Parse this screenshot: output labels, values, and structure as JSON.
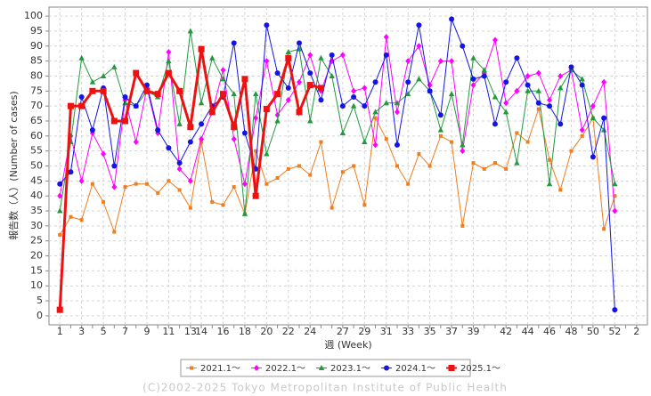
{
  "chart_data": {
    "type": "line",
    "ylabel": "報告数（人）(Number of cases)",
    "xlabel": "週 (Week)",
    "footer": "(C)2002-2025 Tokyo Metropolitan Institute of Public Health",
    "categories": [
      1,
      null,
      3,
      null,
      5,
      null,
      7,
      null,
      9,
      null,
      11,
      null,
      13,
      14,
      null,
      16,
      null,
      18,
      null,
      20,
      null,
      22,
      null,
      24,
      null,
      null,
      27,
      null,
      29,
      null,
      31,
      null,
      33,
      null,
      35,
      null,
      37,
      null,
      39,
      null,
      null,
      42,
      null,
      44,
      null,
      46,
      null,
      48,
      null,
      50,
      null,
      52,
      null,
      2
    ],
    "ylim": [
      -3,
      103
    ],
    "yticks": [
      0,
      5,
      10,
      15,
      20,
      25,
      30,
      35,
      40,
      45,
      50,
      55,
      60,
      65,
      70,
      75,
      80,
      85,
      90,
      95,
      100
    ],
    "grid": true,
    "legend": "bottom",
    "series": [
      {
        "name": "2021.1～",
        "color": "#f07d1e",
        "marker": "square",
        "values": [
          27,
          33,
          32,
          44,
          38,
          28,
          43,
          44,
          44,
          41,
          45,
          42,
          36,
          58,
          38,
          37,
          43,
          34,
          55,
          44,
          46,
          49,
          50,
          47,
          58,
          36,
          48,
          50,
          37,
          66,
          59,
          50,
          44,
          54,
          50,
          60,
          58,
          30,
          51,
          49,
          51,
          49,
          61,
          58,
          69,
          52,
          42,
          55,
          60,
          66,
          29,
          40,
          null,
          null
        ]
      },
      {
        "name": "2022.1～",
        "color": "#ff00ff",
        "marker": "diamond",
        "values": [
          40,
          60,
          45,
          61,
          54,
          43,
          72,
          58,
          76,
          61,
          88,
          49,
          45,
          59,
          68,
          82,
          59,
          44,
          66,
          85,
          67,
          72,
          78,
          87,
          75,
          85,
          87,
          75,
          76,
          57,
          93,
          68,
          85,
          90,
          77,
          85,
          85,
          55,
          77,
          81,
          92,
          71,
          75,
          80,
          81,
          72,
          80,
          82,
          62,
          70,
          78,
          35,
          null,
          null
        ]
      },
      {
        "name": "2023.1～",
        "color": "#22993d",
        "marker": "triangle",
        "values": [
          35,
          58,
          86,
          78,
          80,
          83,
          71,
          70,
          75,
          73,
          85,
          64,
          95,
          71,
          86,
          79,
          74,
          34,
          74,
          54,
          65,
          88,
          89,
          65,
          86,
          80,
          61,
          70,
          58,
          68,
          71,
          71,
          74,
          79,
          75,
          62,
          74,
          57,
          86,
          82,
          73,
          68,
          51,
          75,
          75,
          44,
          76,
          82,
          79,
          66,
          62,
          44,
          null,
          null
        ]
      },
      {
        "name": "2024.1～",
        "color": "#1414e6",
        "marker": "circle",
        "values": [
          44,
          48,
          73,
          62,
          76,
          50,
          73,
          70,
          77,
          62,
          56,
          51,
          58,
          64,
          70,
          73,
          91,
          61,
          49,
          97,
          81,
          76,
          91,
          81,
          72,
          87,
          70,
          73,
          70,
          78,
          87,
          57,
          78,
          97,
          75,
          67,
          99,
          90,
          79,
          80,
          64,
          78,
          86,
          77,
          71,
          70,
          64,
          83,
          77,
          53,
          66,
          2,
          null,
          null
        ]
      },
      {
        "name": "2025.1～",
        "color": "#ee1111",
        "marker": "bigsquare",
        "values": [
          2,
          70,
          70,
          75,
          75,
          65,
          65,
          81,
          75,
          74,
          81,
          75,
          63,
          89,
          68,
          74,
          63,
          79,
          40,
          69,
          74,
          86,
          68,
          77,
          76,
          null,
          null,
          null,
          null,
          null,
          null,
          null,
          null,
          null,
          null,
          null,
          null,
          null,
          null,
          null,
          null,
          null,
          null,
          null,
          null,
          null,
          null,
          null,
          null,
          null,
          null,
          null,
          null,
          null
        ]
      }
    ]
  }
}
